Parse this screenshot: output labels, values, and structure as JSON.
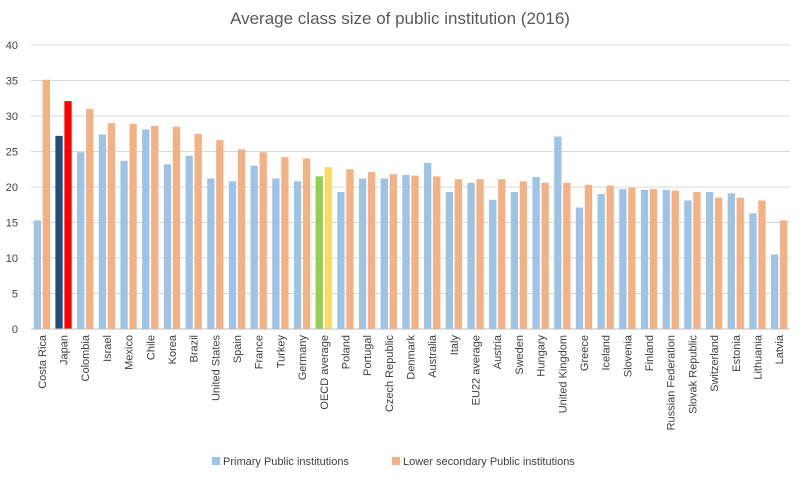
{
  "chart_data": {
    "type": "bar",
    "title": "Average class size of public institution (2016)",
    "xlabel": "",
    "ylabel": "",
    "ylim": [
      0,
      40
    ],
    "yticks": [
      0,
      5,
      10,
      15,
      20,
      25,
      30,
      35,
      40
    ],
    "grid": true,
    "legend_position": "bottom",
    "categories": [
      "Costa Rica",
      "Japan",
      "Colombia",
      "Israel",
      "Mexico",
      "Chile",
      "Korea",
      "Brazil",
      "United States",
      "Spain",
      "France",
      "Turkey",
      "Germany",
      "OECD average",
      "Poland",
      "Portugal",
      "Czech Republic",
      "Denmark",
      "Australia",
      "Italy",
      "EU22 average",
      "Austria",
      "Sweden",
      "Hungary",
      "United Kingdom",
      "Greece",
      "Iceland",
      "Slovenia",
      "Finland",
      "Russian Federation",
      "Slovak Republic",
      "Switzerland",
      "Estonia",
      "Lithuania",
      "Latvia"
    ],
    "series": [
      {
        "name": "Primary Public institutions",
        "color": "#9dc3e6",
        "values": [
          15.3,
          27.2,
          24.9,
          27.4,
          23.7,
          28.1,
          23.2,
          24.4,
          21.2,
          20.8,
          23.0,
          21.2,
          20.8,
          21.5,
          19.3,
          21.2,
          21.2,
          21.7,
          23.4,
          19.3,
          20.6,
          18.2,
          19.3,
          21.4,
          27.1,
          17.1,
          19.0,
          19.7,
          19.6,
          19.6,
          18.1,
          19.3,
          19.1,
          16.3,
          10.5
        ]
      },
      {
        "name": "Lower secondary Public institutions",
        "color": "#f4b183",
        "values": [
          35.1,
          32.1,
          31.0,
          29.0,
          28.9,
          28.6,
          28.5,
          27.5,
          26.6,
          25.3,
          24.9,
          24.2,
          24.0,
          22.8,
          22.5,
          22.1,
          21.8,
          21.6,
          21.5,
          21.1,
          21.1,
          21.1,
          20.8,
          20.6,
          20.6,
          20.3,
          20.2,
          19.9,
          19.7,
          19.5,
          19.3,
          18.5,
          18.5,
          18.1,
          15.3
        ]
      }
    ],
    "highlights": {
      "Japan": {
        "primary_color": "#1f4e79",
        "secondary_color": "#ff0000"
      },
      "OECD average": {
        "primary_color": "#92d050",
        "secondary_color": "#ffd966"
      }
    }
  }
}
